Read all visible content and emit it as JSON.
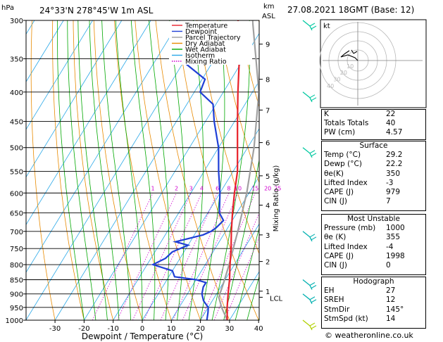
{
  "header": {
    "unit_left": "hPa",
    "location": "24°33'N 278°45'W 1m ASL",
    "km_label": "km",
    "asl_label": "ASL",
    "datetime": "27.08.2021 18GMT (Base: 12)"
  },
  "footer": {
    "credit": "© weatheronline.co.uk"
  },
  "chart_data": {
    "type": "skew-t",
    "xlabel": "Dewpoint / Temperature (°C)",
    "right_axis_label": "Mixing Ratio (g/kg)",
    "pressure_levels": [
      300,
      350,
      400,
      450,
      500,
      550,
      600,
      650,
      700,
      750,
      800,
      850,
      900,
      950,
      1000
    ],
    "x_ticks": [
      -30,
      -20,
      -10,
      0,
      10,
      20,
      30,
      40
    ],
    "km_ticks": [
      {
        "km": "9",
        "p": 330
      },
      {
        "km": "8",
        "p": 380
      },
      {
        "km": "7",
        "p": 430
      },
      {
        "km": "6",
        "p": 490
      },
      {
        "km": "5",
        "p": 560
      },
      {
        "km": "4",
        "p": 630
      },
      {
        "km": "3",
        "p": 710
      },
      {
        "km": "2",
        "p": 790
      },
      {
        "km": "1",
        "p": 890
      }
    ],
    "lcl": {
      "label": "LCL",
      "p": 912
    },
    "mixing_ratios": [
      "1",
      "2",
      "3",
      "4",
      "6",
      "8",
      "10",
      "15",
      "20",
      "25"
    ],
    "legend": [
      {
        "name": "Temperature",
        "color": "#e8202a"
      },
      {
        "name": "Dewpoint",
        "color": "#1f3fd6"
      },
      {
        "name": "Parcel Trajectory",
        "color": "#a0a0a0"
      },
      {
        "name": "Dry Adiabat",
        "color": "#e88a00"
      },
      {
        "name": "Wet Adiabat",
        "color": "#00a800"
      },
      {
        "name": "Isotherm",
        "color": "#2aa8e8"
      },
      {
        "name": "Mixing Ratio",
        "color": "#d000d0"
      }
    ],
    "temperature": [
      [
        1000,
        29.2
      ],
      [
        950,
        26.5
      ],
      [
        900,
        24
      ],
      [
        850,
        21.5
      ],
      [
        800,
        18.5
      ],
      [
        750,
        15.5
      ],
      [
        700,
        12
      ],
      [
        650,
        8.5
      ],
      [
        600,
        5
      ],
      [
        550,
        1.5
      ],
      [
        500,
        -3.5
      ],
      [
        450,
        -9
      ],
      [
        400,
        -15
      ],
      [
        350,
        -21.5
      ],
      [
        300,
        -30
      ]
    ],
    "dewpoint": [
      [
        1000,
        22.2
      ],
      [
        970,
        21
      ],
      [
        950,
        20
      ],
      [
        925,
        17
      ],
      [
        900,
        15
      ],
      [
        875,
        14
      ],
      [
        860,
        14
      ],
      [
        850,
        10
      ],
      [
        840,
        2
      ],
      [
        820,
        0
      ],
      [
        800,
        -8
      ],
      [
        780,
        -5
      ],
      [
        760,
        -4
      ],
      [
        740,
        0
      ],
      [
        730,
        -5
      ],
      [
        710,
        3
      ],
      [
        700,
        5
      ],
      [
        690,
        6
      ],
      [
        670,
        7
      ],
      [
        650,
        4
      ],
      [
        600,
        0
      ],
      [
        550,
        -5
      ],
      [
        500,
        -10
      ],
      [
        450,
        -17
      ],
      [
        420,
        -21
      ],
      [
        400,
        -28
      ],
      [
        380,
        -29
      ],
      [
        350,
        -42
      ],
      [
        340,
        -46
      ],
      [
        320,
        -48
      ],
      [
        300,
        -51
      ]
    ],
    "parcel": [
      [
        1000,
        29.2
      ],
      [
        950,
        24.6
      ],
      [
        912,
        21.5
      ],
      [
        850,
        19.8
      ],
      [
        800,
        18.2
      ],
      [
        700,
        14.2
      ],
      [
        600,
        9.2
      ],
      [
        500,
        2.2
      ],
      [
        400,
        -7.8
      ],
      [
        300,
        -25
      ]
    ],
    "wind_barbs": [
      {
        "p": 1000,
        "color": "#b0d000"
      },
      {
        "p": 900,
        "color": "#00b0b0"
      },
      {
        "p": 850,
        "color": "#00b0b0"
      },
      {
        "p": 700,
        "color": "#00b0b0"
      },
      {
        "p": 500,
        "color": "#00c8a0"
      },
      {
        "p": 400,
        "color": "#00c8a0"
      },
      {
        "p": 300,
        "color": "#00c8a0"
      }
    ]
  },
  "hodograph": {
    "unit": "kt",
    "ring_labels": [
      "10",
      "20",
      "30",
      "40"
    ]
  },
  "indices": {
    "top": [
      {
        "k": "K",
        "v": "22"
      },
      {
        "k": "Totals Totals",
        "v": "40"
      },
      {
        "k": "PW (cm)",
        "v": "4.57"
      }
    ],
    "surface_title": "Surface",
    "surface": [
      {
        "k": "Temp (°C)",
        "v": "29.2"
      },
      {
        "k": "Dewp (°C)",
        "v": "22.2"
      },
      {
        "k": "θe(K)",
        "v": "350"
      },
      {
        "k": "Lifted Index",
        "v": "-3"
      },
      {
        "k": "CAPE (J)",
        "v": "979"
      },
      {
        "k": "CIN (J)",
        "v": "7"
      }
    ],
    "mu_title": "Most Unstable",
    "mu": [
      {
        "k": "Pressure (mb)",
        "v": "1000"
      },
      {
        "k": "θe (K)",
        "v": "355"
      },
      {
        "k": "Lifted Index",
        "v": "-4"
      },
      {
        "k": "CAPE (J)",
        "v": "1998"
      },
      {
        "k": "CIN (J)",
        "v": "0"
      }
    ],
    "hodo_title": "Hodograph",
    "hodo": [
      {
        "k": "EH",
        "v": "27"
      },
      {
        "k": "SREH",
        "v": "12"
      },
      {
        "k": "StmDir",
        "v": "145°"
      },
      {
        "k": "StmSpd (kt)",
        "v": "14"
      }
    ]
  }
}
